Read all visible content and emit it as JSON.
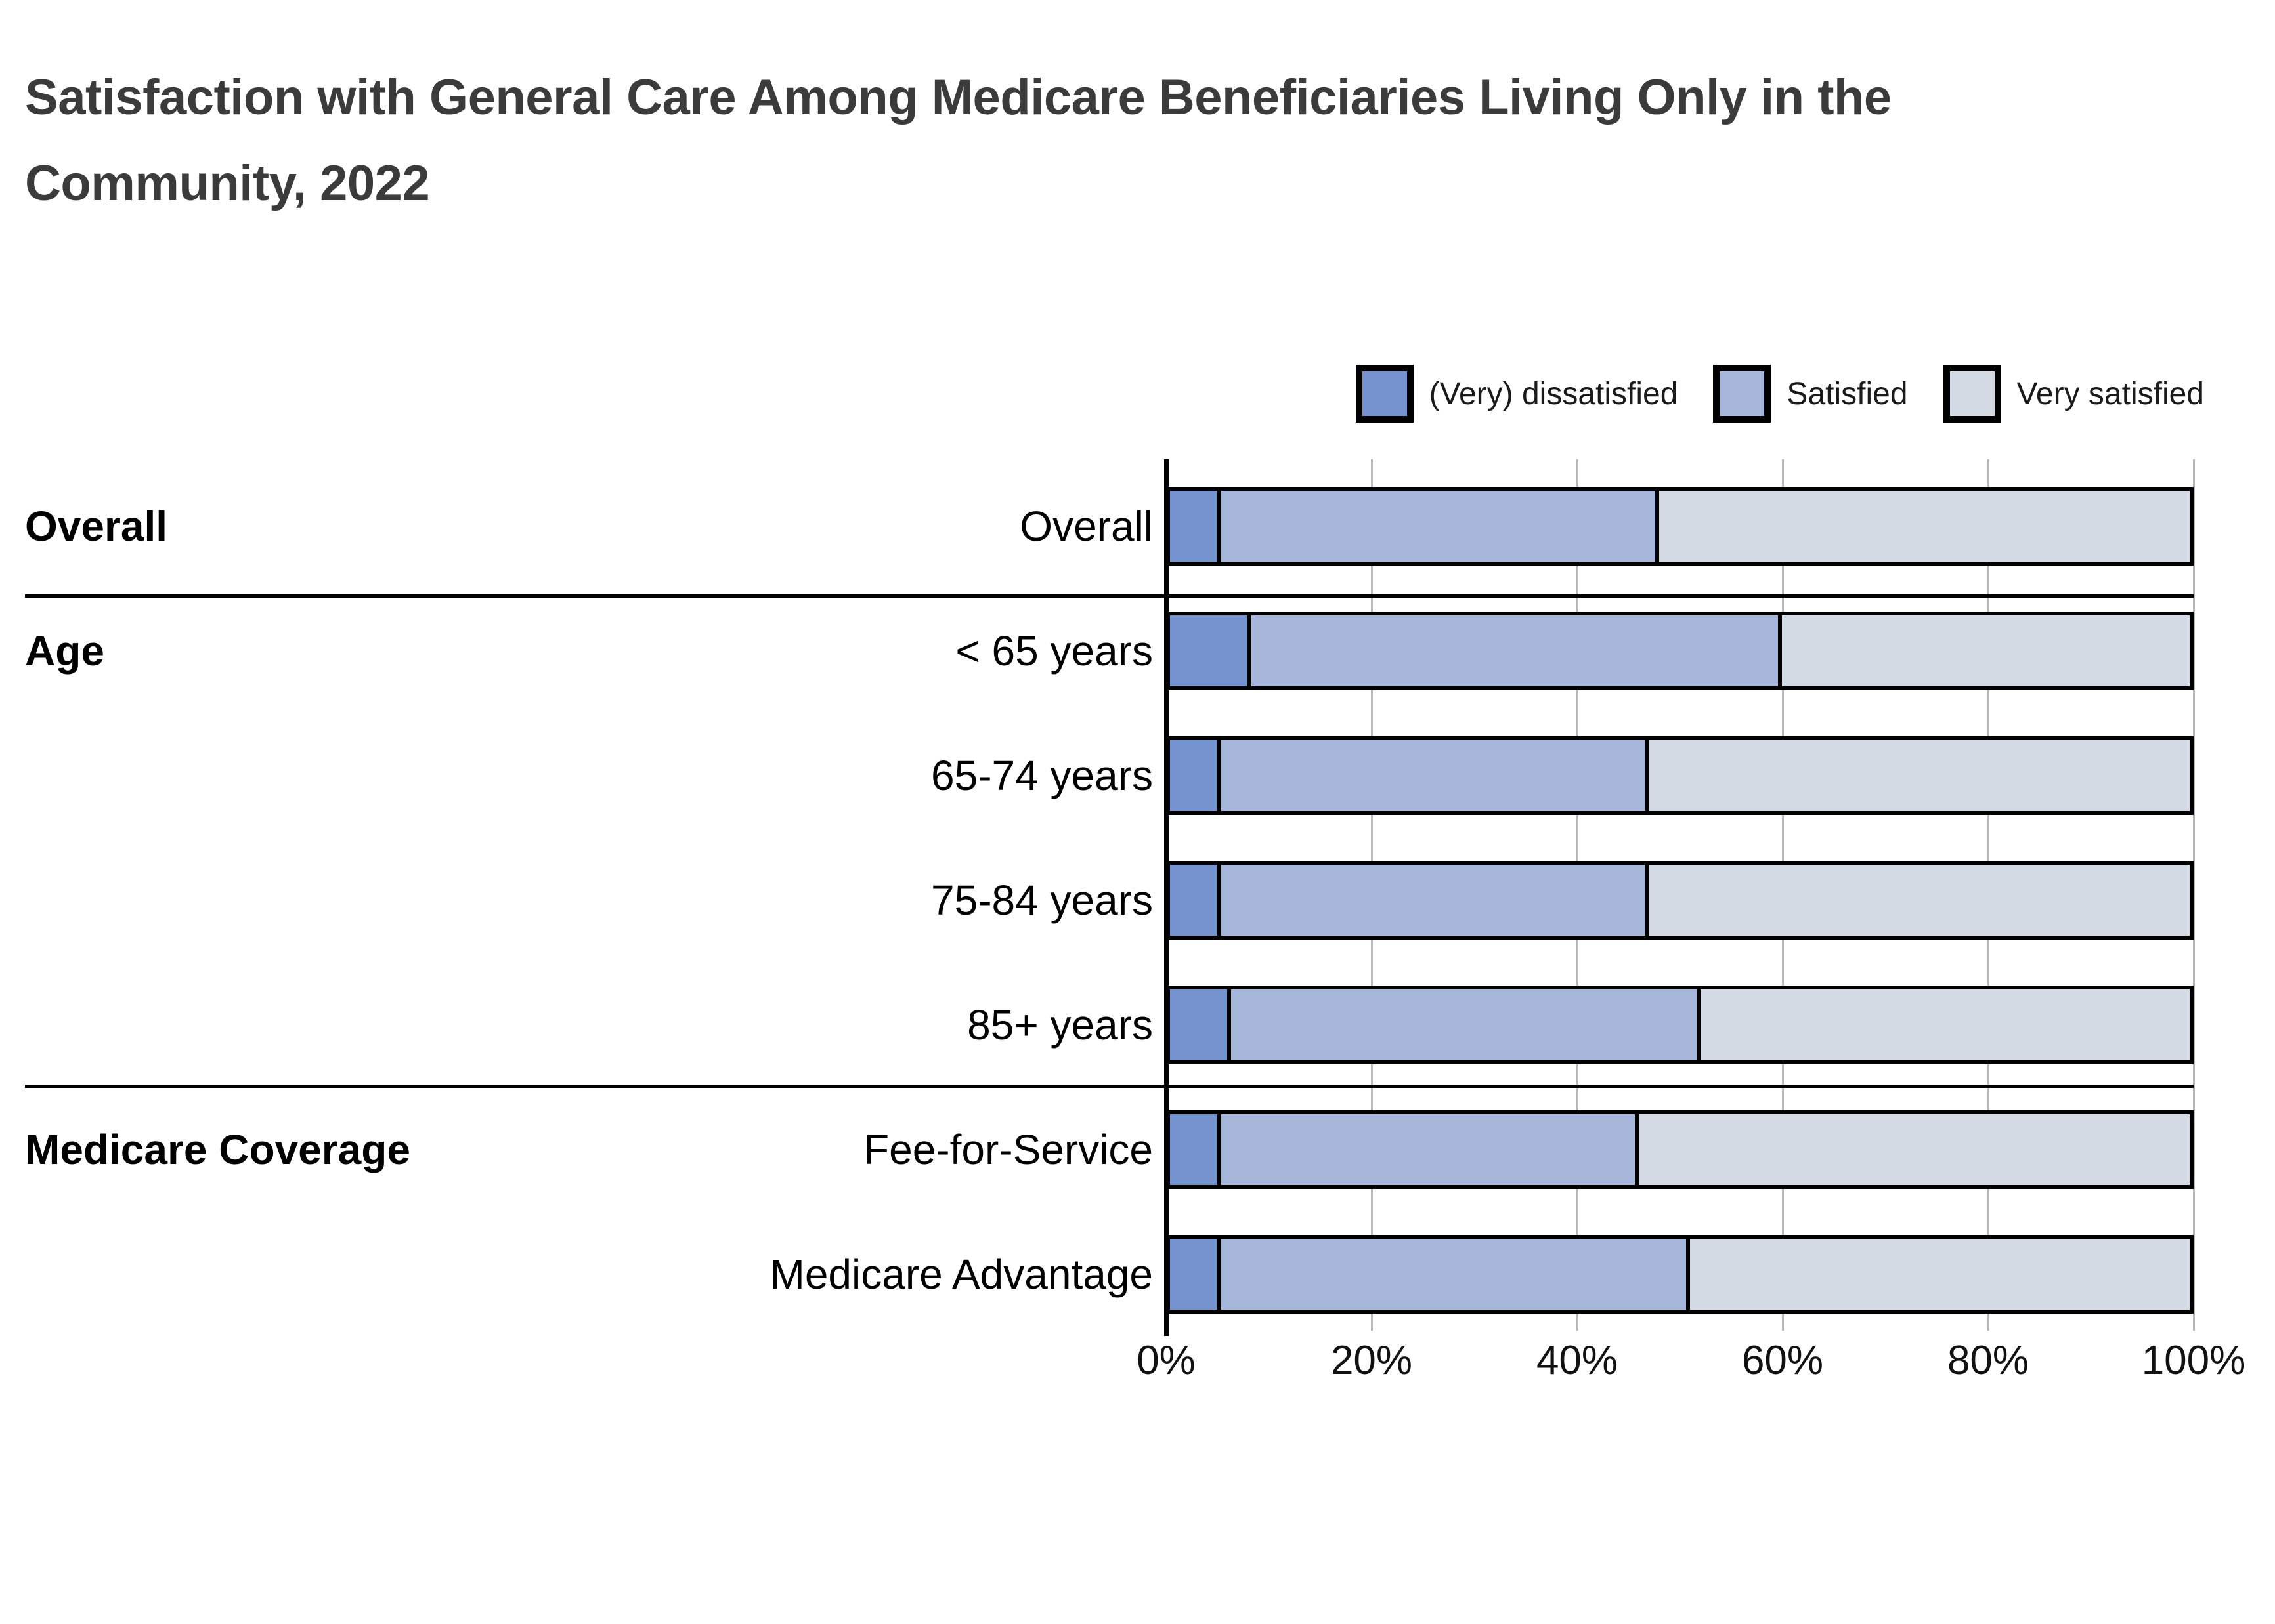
{
  "title": {
    "line1": "Satisfaction with General Care Among Medicare Beneficiaries Living Only in the",
    "line2": "Community, 2022",
    "full": "Satisfaction with General Care Among Medicare Beneficiaries Living Only in the Community, 2022"
  },
  "legend": {
    "items": [
      {
        "label": "(Very) dissatisfied",
        "color": "#7593CE"
      },
      {
        "label": "Satisfied",
        "color": "#A6B7DB"
      },
      {
        "label": "Very satisfied",
        "color": "#D4DAE3"
      }
    ]
  },
  "colors": {
    "background": "#FFFFFF",
    "title_text": "#3B3B3B",
    "label_text": "#000000",
    "bar_border": "#000000",
    "gridline": "#B9B9B9",
    "separator": "#000000",
    "dissatisfied": "#7593CE",
    "satisfied": "#A6B7DB",
    "very_satisfied": "#D4DAE3"
  },
  "chart_data": {
    "type": "bar",
    "orientation": "horizontal",
    "stacked": true,
    "unit": "%",
    "title": "Satisfaction with General Care Among Medicare Beneficiaries Living Only in the Community, 2022",
    "categories": [
      "Overall",
      "< 65 years",
      "65-74 years",
      "75-84 years",
      "85+ years",
      "Fee-for-Service",
      "Medicare Advantage"
    ],
    "groups": [
      {
        "label": "Overall",
        "first_row": 0,
        "rows": [
          "Overall"
        ]
      },
      {
        "label": "Age",
        "first_row": 1,
        "rows": [
          "< 65 years",
          "65-74 years",
          "75-84 years",
          "85+ years"
        ]
      },
      {
        "label": "Medicare Coverage",
        "first_row": 5,
        "rows": [
          "Fee-for-Service",
          "Medicare Advantage"
        ]
      }
    ],
    "series": [
      {
        "name": "(Very) dissatisfied",
        "color": "#7593CE",
        "values": [
          5,
          8,
          5,
          5,
          6,
          5,
          5
        ]
      },
      {
        "name": "Satisfied",
        "color": "#A6B7DB",
        "values": [
          43,
          52,
          42,
          42,
          46,
          41,
          46
        ]
      },
      {
        "name": "Very satisfied",
        "color": "#D4DAE3",
        "values": [
          52,
          40,
          53,
          53,
          48,
          54,
          49
        ]
      }
    ],
    "x_ticks": [
      {
        "value": 0,
        "label": "0%"
      },
      {
        "value": 20,
        "label": "20%"
      },
      {
        "value": 40,
        "label": "40%"
      },
      {
        "value": 60,
        "label": "60%"
      },
      {
        "value": 80,
        "label": "80%"
      },
      {
        "value": 100,
        "label": "100%"
      }
    ],
    "xlabel": "",
    "ylabel": "",
    "xlim": [
      0,
      100
    ],
    "grid": true,
    "legend_position": "top-right"
  }
}
